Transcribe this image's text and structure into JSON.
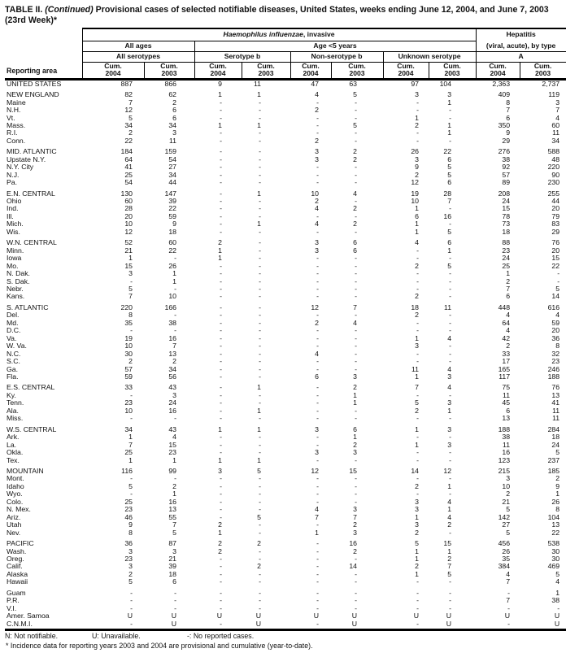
{
  "title": {
    "prefix": "TABLE II.",
    "continued": "(Continued)",
    "rest": "Provisional cases of selected notifiable diseases, United States, weeks ending June 12, 2004, and June 7, 2003",
    "line2": "(23rd Week)*"
  },
  "header": {
    "reporting_area": "Reporting area",
    "haemophilus_italic": "Haemophilus influenzae",
    "haemophilus_rest": ", invasive",
    "hepatitis_line1": "Hepatitis",
    "hepatitis_line2": "(viral, acute), by type",
    "all_ages": "All ages",
    "age_under5": "Age <5 years",
    "all_serotypes": "All serotypes",
    "serotype_b": "Serotype b",
    "non_serotype_b": "Non-serotype b",
    "unknown_serotype": "Unknown serotype",
    "type_a": "A",
    "cum_label": "Cum.",
    "year_2004": "2004",
    "year_2003": "2003"
  },
  "colors": {
    "text": "#111111",
    "background": "#ffffff",
    "rule": "#000000"
  },
  "rows": [
    {
      "area": "UNITED STATES",
      "gap": false,
      "values": [
        "887",
        "866",
        "9",
        "11",
        "47",
        "63",
        "97",
        "104",
        "2,363",
        "2,737"
      ]
    },
    {
      "area": "NEW ENGLAND",
      "gap": true,
      "values": [
        "82",
        "62",
        "1",
        "1",
        "4",
        "5",
        "3",
        "3",
        "409",
        "119"
      ]
    },
    {
      "area": "Maine",
      "gap": false,
      "values": [
        "7",
        "2",
        "-",
        "-",
        "-",
        "-",
        "-",
        "1",
        "8",
        "3"
      ]
    },
    {
      "area": "N.H.",
      "gap": false,
      "values": [
        "12",
        "6",
        "-",
        "-",
        "2",
        "-",
        "-",
        "-",
        "7",
        "7"
      ]
    },
    {
      "area": "Vt.",
      "gap": false,
      "values": [
        "5",
        "6",
        "-",
        "-",
        "-",
        "-",
        "1",
        "-",
        "6",
        "4"
      ]
    },
    {
      "area": "Mass.",
      "gap": false,
      "values": [
        "34",
        "34",
        "1",
        "1",
        "-",
        "5",
        "2",
        "1",
        "350",
        "60"
      ]
    },
    {
      "area": "R.I.",
      "gap": false,
      "values": [
        "2",
        "3",
        "-",
        "-",
        "-",
        "-",
        "-",
        "1",
        "9",
        "11"
      ]
    },
    {
      "area": "Conn.",
      "gap": false,
      "values": [
        "22",
        "11",
        "-",
        "-",
        "2",
        "-",
        "-",
        "-",
        "29",
        "34"
      ]
    },
    {
      "area": "MID. ATLANTIC",
      "gap": true,
      "values": [
        "184",
        "159",
        "-",
        "-",
        "3",
        "2",
        "26",
        "22",
        "276",
        "588"
      ]
    },
    {
      "area": "Upstate N.Y.",
      "gap": false,
      "values": [
        "64",
        "54",
        "-",
        "-",
        "3",
        "2",
        "3",
        "6",
        "38",
        "48"
      ]
    },
    {
      "area": "N.Y. City",
      "gap": false,
      "values": [
        "41",
        "27",
        "-",
        "-",
        "-",
        "-",
        "9",
        "5",
        "92",
        "220"
      ]
    },
    {
      "area": "N.J.",
      "gap": false,
      "values": [
        "25",
        "34",
        "-",
        "-",
        "-",
        "-",
        "2",
        "5",
        "57",
        "90"
      ]
    },
    {
      "area": "Pa.",
      "gap": false,
      "values": [
        "54",
        "44",
        "-",
        "-",
        "-",
        "-",
        "12",
        "6",
        "89",
        "230"
      ]
    },
    {
      "area": "E.N. CENTRAL",
      "gap": true,
      "values": [
        "130",
        "147",
        "-",
        "1",
        "10",
        "4",
        "19",
        "28",
        "208",
        "255"
      ]
    },
    {
      "area": "Ohio",
      "gap": false,
      "values": [
        "60",
        "39",
        "-",
        "-",
        "2",
        "-",
        "10",
        "7",
        "24",
        "44"
      ]
    },
    {
      "area": "Ind.",
      "gap": false,
      "values": [
        "28",
        "22",
        "-",
        "-",
        "4",
        "2",
        "1",
        "-",
        "15",
        "20"
      ]
    },
    {
      "area": "Ill.",
      "gap": false,
      "values": [
        "20",
        "59",
        "-",
        "-",
        "-",
        "-",
        "6",
        "16",
        "78",
        "79"
      ]
    },
    {
      "area": "Mich.",
      "gap": false,
      "values": [
        "10",
        "9",
        "-",
        "1",
        "4",
        "2",
        "1",
        "-",
        "73",
        "83"
      ]
    },
    {
      "area": "Wis.",
      "gap": false,
      "values": [
        "12",
        "18",
        "-",
        "-",
        "-",
        "-",
        "1",
        "5",
        "18",
        "29"
      ]
    },
    {
      "area": "W.N. CENTRAL",
      "gap": true,
      "values": [
        "52",
        "60",
        "2",
        "-",
        "3",
        "6",
        "4",
        "6",
        "88",
        "76"
      ]
    },
    {
      "area": "Minn.",
      "gap": false,
      "values": [
        "21",
        "22",
        "1",
        "-",
        "3",
        "6",
        "-",
        "1",
        "23",
        "20"
      ]
    },
    {
      "area": "Iowa",
      "gap": false,
      "values": [
        "1",
        "-",
        "1",
        "-",
        "-",
        "-",
        "-",
        "-",
        "24",
        "15"
      ]
    },
    {
      "area": "Mo.",
      "gap": false,
      "values": [
        "15",
        "26",
        "-",
        "-",
        "-",
        "-",
        "2",
        "5",
        "25",
        "22"
      ]
    },
    {
      "area": "N. Dak.",
      "gap": false,
      "values": [
        "3",
        "1",
        "-",
        "-",
        "-",
        "-",
        "-",
        "-",
        "1",
        "-"
      ]
    },
    {
      "area": "S. Dak.",
      "gap": false,
      "values": [
        "-",
        "1",
        "-",
        "-",
        "-",
        "-",
        "-",
        "-",
        "2",
        "-"
      ]
    },
    {
      "area": "Nebr.",
      "gap": false,
      "values": [
        "5",
        "-",
        "-",
        "-",
        "-",
        "-",
        "-",
        "-",
        "7",
        "5"
      ]
    },
    {
      "area": "Kans.",
      "gap": false,
      "values": [
        "7",
        "10",
        "-",
        "-",
        "-",
        "-",
        "2",
        "-",
        "6",
        "14"
      ]
    },
    {
      "area": "S. ATLANTIC",
      "gap": true,
      "values": [
        "220",
        "166",
        "-",
        "-",
        "12",
        "7",
        "18",
        "11",
        "448",
        "616"
      ]
    },
    {
      "area": "Del.",
      "gap": false,
      "values": [
        "8",
        "-",
        "-",
        "-",
        "-",
        "-",
        "2",
        "-",
        "4",
        "4"
      ]
    },
    {
      "area": "Md.",
      "gap": false,
      "values": [
        "35",
        "38",
        "-",
        "-",
        "2",
        "4",
        "-",
        "-",
        "64",
        "59"
      ]
    },
    {
      "area": "D.C.",
      "gap": false,
      "values": [
        "-",
        "-",
        "-",
        "-",
        "-",
        "-",
        "-",
        "-",
        "4",
        "20"
      ]
    },
    {
      "area": "Va.",
      "gap": false,
      "values": [
        "19",
        "16",
        "-",
        "-",
        "-",
        "-",
        "1",
        "4",
        "42",
        "36"
      ]
    },
    {
      "area": "W. Va.",
      "gap": false,
      "values": [
        "10",
        "7",
        "-",
        "-",
        "-",
        "-",
        "3",
        "-",
        "2",
        "8"
      ]
    },
    {
      "area": "N.C.",
      "gap": false,
      "values": [
        "30",
        "13",
        "-",
        "-",
        "4",
        "-",
        "-",
        "-",
        "33",
        "32"
      ]
    },
    {
      "area": "S.C.",
      "gap": false,
      "values": [
        "2",
        "2",
        "-",
        "-",
        "-",
        "-",
        "-",
        "-",
        "17",
        "23"
      ]
    },
    {
      "area": "Ga.",
      "gap": false,
      "values": [
        "57",
        "34",
        "-",
        "-",
        "-",
        "-",
        "11",
        "4",
        "165",
        "246"
      ]
    },
    {
      "area": "Fla.",
      "gap": false,
      "values": [
        "59",
        "56",
        "-",
        "-",
        "6",
        "3",
        "1",
        "3",
        "117",
        "188"
      ]
    },
    {
      "area": "E.S. CENTRAL",
      "gap": true,
      "values": [
        "33",
        "43",
        "-",
        "1",
        "-",
        "2",
        "7",
        "4",
        "75",
        "76"
      ]
    },
    {
      "area": "Ky.",
      "gap": false,
      "values": [
        "-",
        "3",
        "-",
        "-",
        "-",
        "1",
        "-",
        "-",
        "11",
        "13"
      ]
    },
    {
      "area": "Tenn.",
      "gap": false,
      "values": [
        "23",
        "24",
        "-",
        "-",
        "-",
        "1",
        "5",
        "3",
        "45",
        "41"
      ]
    },
    {
      "area": "Ala.",
      "gap": false,
      "values": [
        "10",
        "16",
        "-",
        "1",
        "-",
        "-",
        "2",
        "1",
        "6",
        "11"
      ]
    },
    {
      "area": "Miss.",
      "gap": false,
      "values": [
        "-",
        "-",
        "-",
        "-",
        "-",
        "-",
        "-",
        "-",
        "13",
        "11"
      ]
    },
    {
      "area": "W.S. CENTRAL",
      "gap": true,
      "values": [
        "34",
        "43",
        "1",
        "1",
        "3",
        "6",
        "1",
        "3",
        "188",
        "284"
      ]
    },
    {
      "area": "Ark.",
      "gap": false,
      "values": [
        "1",
        "4",
        "-",
        "-",
        "-",
        "1",
        "-",
        "-",
        "38",
        "18"
      ]
    },
    {
      "area": "La.",
      "gap": false,
      "values": [
        "7",
        "15",
        "-",
        "-",
        "-",
        "2",
        "1",
        "3",
        "11",
        "24"
      ]
    },
    {
      "area": "Okla.",
      "gap": false,
      "values": [
        "25",
        "23",
        "-",
        "-",
        "3",
        "3",
        "-",
        "-",
        "16",
        "5"
      ]
    },
    {
      "area": "Tex.",
      "gap": false,
      "values": [
        "1",
        "1",
        "1",
        "1",
        "-",
        "-",
        "-",
        "-",
        "123",
        "237"
      ]
    },
    {
      "area": "MOUNTAIN",
      "gap": true,
      "values": [
        "116",
        "99",
        "3",
        "5",
        "12",
        "15",
        "14",
        "12",
        "215",
        "185"
      ]
    },
    {
      "area": "Mont.",
      "gap": false,
      "values": [
        "-",
        "-",
        "-",
        "-",
        "-",
        "-",
        "-",
        "-",
        "3",
        "2"
      ]
    },
    {
      "area": "Idaho",
      "gap": false,
      "values": [
        "5",
        "2",
        "-",
        "-",
        "-",
        "-",
        "2",
        "1",
        "10",
        "9"
      ]
    },
    {
      "area": "Wyo.",
      "gap": false,
      "values": [
        "-",
        "1",
        "-",
        "-",
        "-",
        "-",
        "-",
        "-",
        "2",
        "1"
      ]
    },
    {
      "area": "Colo.",
      "gap": false,
      "values": [
        "25",
        "16",
        "-",
        "-",
        "-",
        "-",
        "3",
        "4",
        "21",
        "26"
      ]
    },
    {
      "area": "N. Mex.",
      "gap": false,
      "values": [
        "23",
        "13",
        "-",
        "-",
        "4",
        "3",
        "3",
        "1",
        "5",
        "8"
      ]
    },
    {
      "area": "Ariz.",
      "gap": false,
      "values": [
        "46",
        "55",
        "-",
        "5",
        "7",
        "7",
        "1",
        "4",
        "142",
        "104"
      ]
    },
    {
      "area": "Utah",
      "gap": false,
      "values": [
        "9",
        "7",
        "2",
        "-",
        "-",
        "2",
        "3",
        "2",
        "27",
        "13"
      ]
    },
    {
      "area": "Nev.",
      "gap": false,
      "values": [
        "8",
        "5",
        "1",
        "-",
        "1",
        "3",
        "2",
        "-",
        "5",
        "22"
      ]
    },
    {
      "area": "PACIFIC",
      "gap": true,
      "values": [
        "36",
        "87",
        "2",
        "2",
        "-",
        "16",
        "5",
        "15",
        "456",
        "538"
      ]
    },
    {
      "area": "Wash.",
      "gap": false,
      "values": [
        "3",
        "3",
        "2",
        "-",
        "-",
        "2",
        "1",
        "1",
        "26",
        "30"
      ]
    },
    {
      "area": "Oreg.",
      "gap": false,
      "values": [
        "23",
        "21",
        "-",
        "-",
        "-",
        "-",
        "1",
        "2",
        "35",
        "30"
      ]
    },
    {
      "area": "Calif.",
      "gap": false,
      "values": [
        "3",
        "39",
        "-",
        "2",
        "-",
        "14",
        "2",
        "7",
        "384",
        "469"
      ]
    },
    {
      "area": "Alaska",
      "gap": false,
      "values": [
        "2",
        "18",
        "-",
        "-",
        "-",
        "-",
        "1",
        "5",
        "4",
        "5"
      ]
    },
    {
      "area": "Hawaii",
      "gap": false,
      "values": [
        "5",
        "6",
        "-",
        "-",
        "-",
        "-",
        "-",
        "-",
        "7",
        "4"
      ]
    },
    {
      "area": "Guam",
      "gap": true,
      "values": [
        "-",
        "-",
        "-",
        "-",
        "-",
        "-",
        "-",
        "-",
        "-",
        "1"
      ]
    },
    {
      "area": "P.R.",
      "gap": false,
      "values": [
        "-",
        "-",
        "-",
        "-",
        "-",
        "-",
        "-",
        "-",
        "7",
        "38"
      ]
    },
    {
      "area": "V.I.",
      "gap": false,
      "values": [
        "-",
        "-",
        "-",
        "-",
        "-",
        "-",
        "-",
        "-",
        "-",
        "-"
      ]
    },
    {
      "area": "Amer. Samoa",
      "gap": false,
      "values": [
        "U",
        "U",
        "U",
        "U",
        "U",
        "U",
        "U",
        "U",
        "U",
        "U"
      ]
    },
    {
      "area": "C.N.M.I.",
      "gap": false,
      "values": [
        "-",
        "U",
        "-",
        "U",
        "-",
        "U",
        "-",
        "U",
        "-",
        "U"
      ]
    }
  ],
  "footnotes": {
    "legend": [
      "N: Not notifiable.",
      "U: Unavailable.",
      "-: No reported cases."
    ],
    "note": "* Incidence data for reporting years 2003 and 2004 are provisional and cumulative (year-to-date)."
  }
}
